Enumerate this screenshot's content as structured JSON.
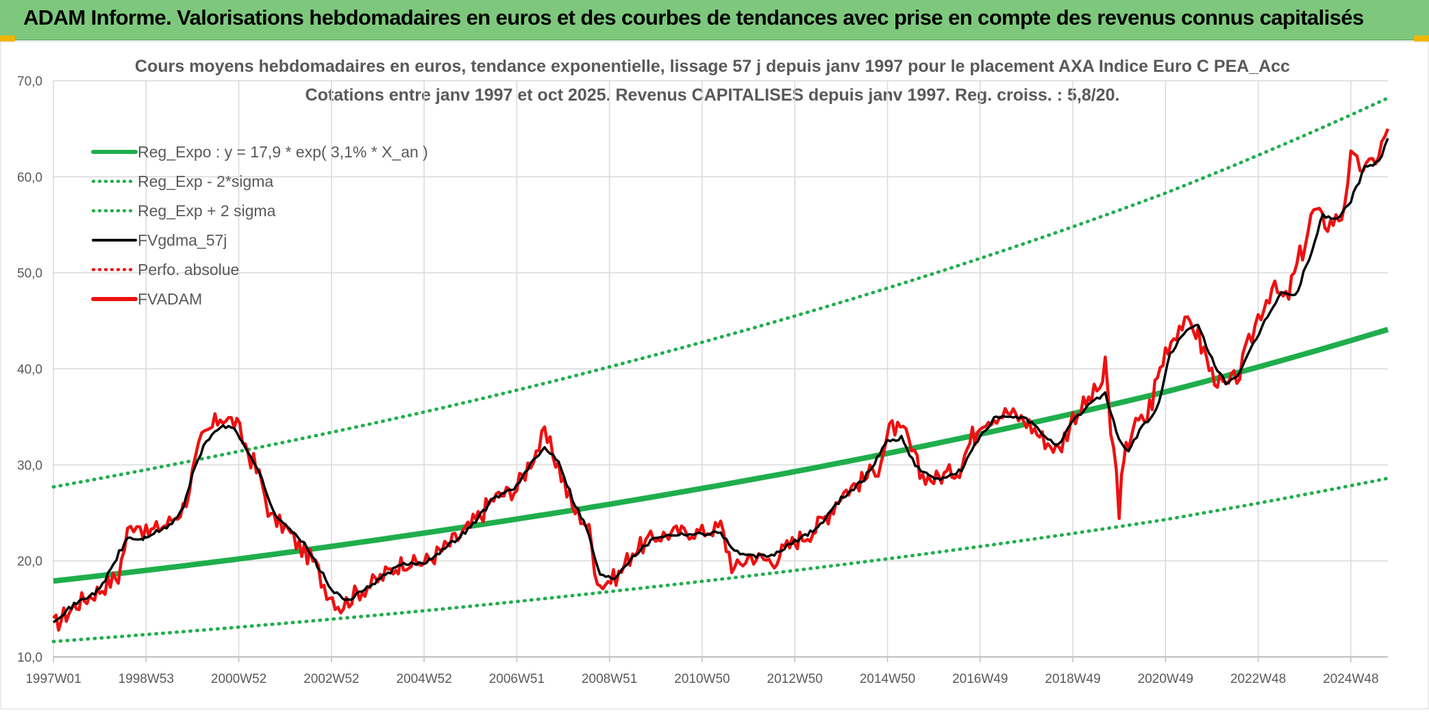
{
  "banner": {
    "text": "ADAM Informe. Valorisations hebdomadaires en euros et des courbes de tendances avec prise en compte des revenus connus capitalisés"
  },
  "colors": {
    "banner_bg": "#7dc87d",
    "trend_green": "#1fae4c",
    "series_red": "#ee1111",
    "smooth_black": "#000000",
    "grid": "#d9d9d9",
    "text": "#595959"
  },
  "chart_data": {
    "type": "line",
    "title": "Cours moyens hebdomadaires en euros, tendance exponentielle, lissage 57 j depuis janv 1997 pour le placement AXA Indice Euro C PEA_Acc",
    "subtitle": "Cotations entre janv 1997 et oct 2025. Revenus CAPITALISES depuis janv 1997. Reg. croiss. : 5,8/20.",
    "xlabel": "",
    "ylabel": "",
    "xlim": [
      1997.0,
      2025.8
    ],
    "ylim": [
      10,
      70
    ],
    "yticks": [
      "10,0",
      "20,0",
      "30,0",
      "40,0",
      "50,0",
      "60,0",
      "70,0"
    ],
    "ytick_values": [
      10,
      20,
      30,
      40,
      50,
      60,
      70
    ],
    "xticks": [
      "1997W01",
      "1998W53",
      "2000W52",
      "2002W52",
      "2004W52",
      "2006W51",
      "2008W51",
      "2010W50",
      "2012W50",
      "2014W50",
      "2016W49",
      "2018W49",
      "2020W49",
      "2022W48",
      "2024W48"
    ],
    "xtick_values": [
      1997.0,
      1999.0,
      2001.0,
      2003.0,
      2005.0,
      2007.0,
      2009.0,
      2011.0,
      2013.0,
      2015.0,
      2017.0,
      2019.0,
      2021.0,
      2023.0,
      2025.0
    ],
    "grid": true,
    "legend_position": "top-left",
    "legend": [
      {
        "label": "Reg_Expo : y = 17,9 * exp( 3,1% *  X_an )",
        "style": "solid",
        "color": "#1fae4c"
      },
      {
        "label": "Reg_Exp - 2*sigma",
        "style": "dotted",
        "color": "#1fae4c"
      },
      {
        "label": "Reg_Exp + 2 sigma",
        "style": "dotted",
        "color": "#1fae4c"
      },
      {
        "label": "FVgdma_57j",
        "style": "solid",
        "color": "#000000"
      },
      {
        "label": "Perfo. absolue",
        "style": "dotted",
        "color": "#ee1111"
      },
      {
        "label": "FVADAM",
        "style": "solid",
        "color": "#ee1111"
      }
    ],
    "series": [
      {
        "name": "Reg_Expo : y = 17,9 * exp( 3,1% *  X_an )",
        "x": [
          1997.0,
          2001.0,
          2005.0,
          2009.0,
          2013.0,
          2017.0,
          2021.0,
          2025.8
        ],
        "values": [
          17.9,
          20.2,
          22.9,
          25.9,
          29.3,
          33.2,
          37.6,
          44.1
        ]
      },
      {
        "name": "Reg_Exp - 2*sigma",
        "x": [
          1997.0,
          2001.0,
          2005.0,
          2009.0,
          2013.0,
          2017.0,
          2021.0,
          2025.8
        ],
        "values": [
          11.6,
          13.1,
          14.8,
          16.8,
          19.0,
          21.5,
          24.3,
          28.6
        ]
      },
      {
        "name": "Reg_Exp + 2 sigma",
        "x": [
          1997.0,
          2001.0,
          2005.0,
          2009.0,
          2013.0,
          2017.0,
          2021.0,
          2025.8
        ],
        "values": [
          27.7,
          31.4,
          35.5,
          40.2,
          45.5,
          51.5,
          58.3,
          68.2
        ]
      },
      {
        "name": "FVADAM",
        "x": [
          1997.0,
          1997.5,
          1998.0,
          1998.4,
          1998.6,
          1998.8,
          1999.0,
          1999.5,
          1999.8,
          2000.0,
          2000.2,
          2000.6,
          2000.9,
          2001.2,
          2001.5,
          2001.7,
          2002.0,
          2002.3,
          2002.6,
          2002.9,
          2003.2,
          2003.5,
          2004.0,
          2004.5,
          2005.0,
          2005.5,
          2006.0,
          2006.5,
          2007.0,
          2007.3,
          2007.6,
          2007.9,
          2008.2,
          2008.5,
          2008.8,
          2009.2,
          2009.5,
          2010.0,
          2010.5,
          2011.0,
          2011.4,
          2011.7,
          2012.0,
          2012.5,
          2013.0,
          2013.5,
          2014.0,
          2014.5,
          2014.8,
          2015.1,
          2015.4,
          2015.7,
          2016.0,
          2016.5,
          2017.0,
          2017.3,
          2017.6,
          2018.0,
          2018.4,
          2018.7,
          2019.0,
          2019.4,
          2019.7,
          2020.0,
          2020.15,
          2020.3,
          2020.6,
          2021.0,
          2021.3,
          2021.6,
          2022.0,
          2022.3,
          2022.6,
          2022.8,
          2023.0,
          2023.3,
          2023.6,
          2023.9,
          2024.2,
          2024.5,
          2024.8,
          2025.0,
          2025.2,
          2025.4,
          2025.6,
          2025.8
        ],
        "values": [
          13.2,
          15.5,
          17.0,
          18.5,
          23.0,
          24.2,
          22.8,
          24.0,
          25.5,
          29.0,
          32.5,
          35.0,
          34.5,
          31.5,
          28.0,
          24.5,
          23.5,
          21.5,
          20.0,
          17.0,
          15.2,
          16.5,
          18.0,
          19.8,
          19.8,
          21.5,
          23.5,
          26.5,
          27.5,
          30.5,
          33.0,
          30.0,
          25.5,
          24.0,
          17.5,
          18.5,
          21.0,
          22.5,
          23.0,
          23.0,
          23.5,
          19.0,
          20.5,
          20.0,
          22.0,
          23.5,
          27.0,
          28.5,
          30.0,
          34.0,
          33.0,
          29.0,
          28.5,
          29.5,
          34.5,
          35.0,
          35.5,
          34.5,
          32.5,
          31.5,
          35.0,
          37.0,
          39.0,
          25.8,
          31.5,
          34.0,
          35.0,
          42.0,
          44.5,
          44.8,
          39.5,
          38.0,
          39.5,
          42.5,
          45.5,
          48.5,
          47.0,
          51.5,
          56.5,
          55.0,
          56.0,
          62.0,
          61.0,
          61.0,
          62.5,
          65.0
        ]
      },
      {
        "name": "FVgdma_57j",
        "x": [
          1997.0,
          1997.5,
          1998.0,
          1998.6,
          1998.9,
          1999.0,
          1999.5,
          1999.8,
          2000.0,
          2000.3,
          2000.6,
          2000.9,
          2001.2,
          2001.5,
          2001.8,
          2002.1,
          2002.4,
          2002.7,
          2003.0,
          2003.3,
          2003.6,
          2004.0,
          2004.5,
          2005.0,
          2005.5,
          2006.0,
          2006.5,
          2007.0,
          2007.3,
          2007.6,
          2007.9,
          2008.2,
          2008.5,
          2008.8,
          2009.1,
          2009.5,
          2010.0,
          2010.5,
          2011.0,
          2011.4,
          2011.7,
          2012.0,
          2012.5,
          2013.0,
          2013.5,
          2014.0,
          2014.5,
          2015.0,
          2015.3,
          2015.6,
          2015.9,
          2016.2,
          2016.6,
          2017.0,
          2017.3,
          2017.6,
          2018.0,
          2018.4,
          2018.7,
          2019.0,
          2019.4,
          2019.7,
          2020.0,
          2020.2,
          2020.5,
          2020.8,
          2021.1,
          2021.4,
          2021.7,
          2022.0,
          2022.3,
          2022.6,
          2022.9,
          2023.2,
          2023.5,
          2023.8,
          2024.1,
          2024.4,
          2024.7,
          2025.0,
          2025.3,
          2025.6,
          2025.8
        ],
        "values": [
          13.8,
          15.6,
          17.0,
          22.4,
          22.2,
          22.5,
          23.6,
          25.5,
          29.0,
          32.5,
          34.0,
          33.8,
          31.5,
          28.5,
          24.5,
          23.5,
          21.8,
          19.5,
          17.0,
          15.8,
          16.6,
          18.0,
          19.6,
          19.8,
          21.5,
          23.5,
          26.5,
          27.8,
          30.0,
          31.8,
          30.5,
          26.5,
          23.5,
          18.5,
          18.2,
          20.5,
          22.5,
          22.8,
          22.8,
          23.0,
          21.0,
          20.5,
          20.5,
          22.0,
          23.5,
          26.5,
          28.5,
          32.5,
          32.8,
          30.0,
          28.8,
          28.5,
          29.5,
          33.0,
          34.8,
          35.0,
          34.8,
          33.0,
          32.0,
          34.5,
          36.5,
          37.5,
          32.5,
          31.5,
          34.0,
          35.5,
          41.5,
          43.8,
          44.5,
          41.0,
          38.5,
          39.5,
          42.5,
          45.5,
          48.0,
          47.5,
          51.5,
          56.0,
          55.5,
          57.5,
          61.0,
          61.5,
          64.0
        ]
      }
    ]
  }
}
